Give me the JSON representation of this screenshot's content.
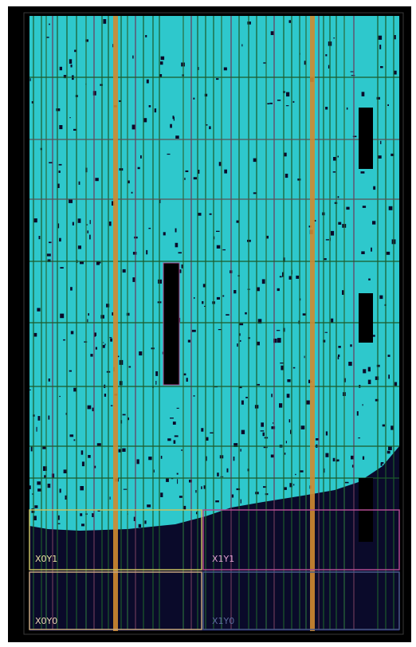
{
  "regions": [
    {
      "label": "X0Y1"
    },
    {
      "label": "X1Y1"
    },
    {
      "label": "X0Y0"
    },
    {
      "label": "X1Y0"
    }
  ]
}
